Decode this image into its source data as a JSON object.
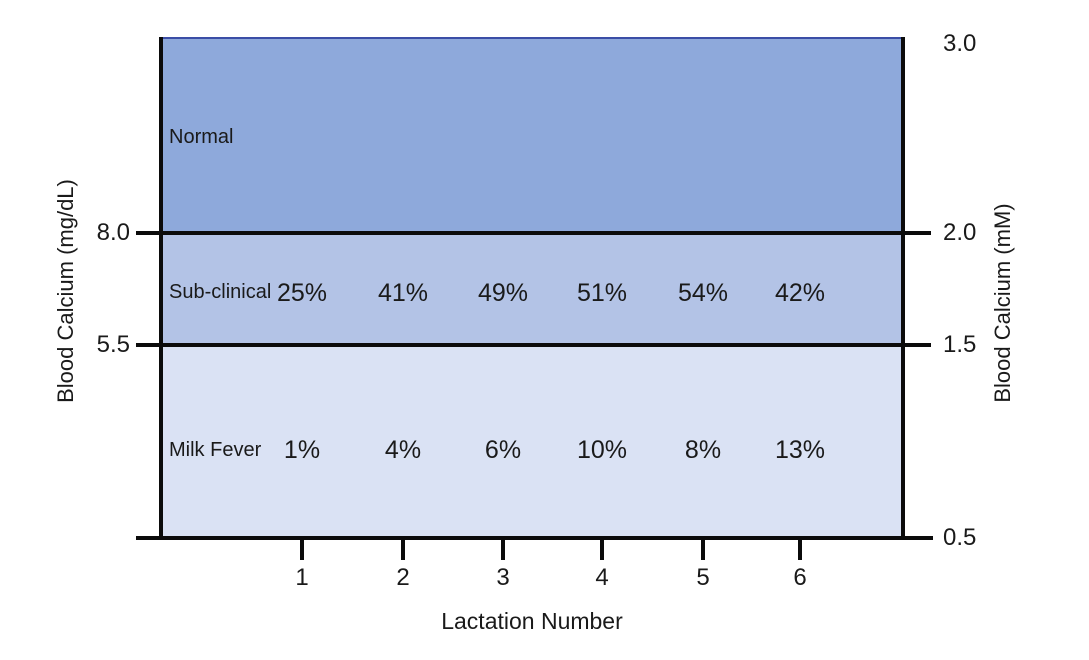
{
  "figure": {
    "background": "#ffffff",
    "axis_line_color": "#0b0b0b",
    "top_border_color": "#3b4da6",
    "text_color": "#1a1a1a"
  },
  "left_axis": {
    "title": "Blood Calcium (mg/dL)",
    "tick_labels": [
      "8.0",
      "5.5"
    ]
  },
  "right_axis": {
    "title": "Blood Calcium (mM)",
    "tick_labels": [
      "3.0",
      "2.0",
      "1.5",
      "0.5"
    ]
  },
  "x_axis": {
    "title": "Lactation Number",
    "tick_labels": [
      "1",
      "2",
      "3",
      "4",
      "5",
      "6"
    ]
  },
  "zones": [
    {
      "label": "Normal",
      "fill": "#8EA9DB",
      "values": []
    },
    {
      "label": "Sub-clinical",
      "fill": "#B3C3E6",
      "values": [
        "25%",
        "41%",
        "49%",
        "51%",
        "54%",
        "42%"
      ]
    },
    {
      "label": "Milk Fever",
      "fill": "#DAE2F4",
      "values": [
        "1%",
        "4%",
        "6%",
        "10%",
        "8%",
        "13%"
      ]
    }
  ],
  "chart_data": {
    "type": "area",
    "x": [
      1,
      2,
      3,
      4,
      5,
      6
    ],
    "xlabel": "Lactation Number",
    "ylabel_left": "Blood Calcium (mg/dL)",
    "ylabel_right": "Blood Calcium (mM)",
    "left_axis_ticks_mg_dL": [
      8.0,
      5.5
    ],
    "right_axis_ticks_mM": [
      3.0,
      2.0,
      1.5,
      0.5
    ],
    "grid": false,
    "legend": false,
    "zones": [
      {
        "name": "Normal",
        "blood_calcium_mg_dL": "above 8.0",
        "blood_calcium_mM": "2.0 to 3.0",
        "fill": "#8EA9DB"
      },
      {
        "name": "Sub-clinical",
        "blood_calcium_mg_dL": "5.5 to 8.0",
        "blood_calcium_mM": "1.5 to 2.0",
        "fill": "#B3C3E6"
      },
      {
        "name": "Milk Fever",
        "blood_calcium_mg_dL": "below 5.5",
        "blood_calcium_mM": "0.5 to 1.5",
        "fill": "#DAE2F4"
      }
    ],
    "series": [
      {
        "name": "Sub-clinical",
        "unit": "%",
        "values": [
          25,
          41,
          49,
          51,
          54,
          42
        ]
      },
      {
        "name": "Milk Fever",
        "unit": "%",
        "values": [
          1,
          4,
          6,
          10,
          8,
          13
        ]
      }
    ]
  }
}
